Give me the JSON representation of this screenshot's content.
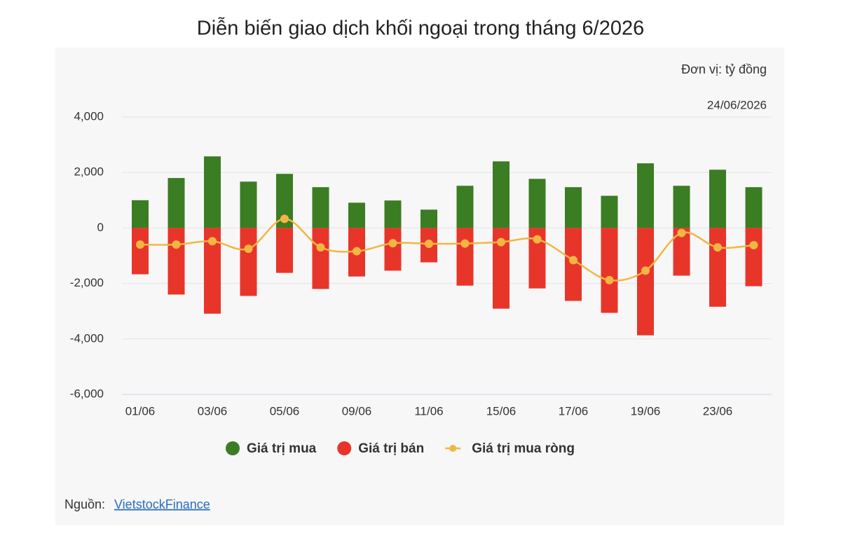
{
  "chart_data": {
    "type": "bar",
    "title": "Diễn biến giao dịch khối ngoại trong tháng 6/2026",
    "unit_note": "Đơn vị: tỷ đồng",
    "date_note": "24/06/2026",
    "categories": [
      "01/06",
      null,
      "03/06",
      null,
      "05/06",
      null,
      "09/06",
      null,
      "11/06",
      null,
      "15/06",
      null,
      "17/06",
      null,
      "19/06",
      null,
      "23/06",
      null
    ],
    "series": [
      {
        "name": "Giá trị mua",
        "type": "bar",
        "color": "#3a7d23",
        "values": [
          1000,
          1800,
          2580,
          1670,
          1950,
          1470,
          910,
          990,
          660,
          1520,
          2400,
          1770,
          1470,
          1160,
          2330,
          1520,
          2100,
          1470
        ]
      },
      {
        "name": "Giá trị bán",
        "type": "bar",
        "color": "#e8352a",
        "values": [
          -1670,
          -2400,
          -3090,
          -2450,
          -1620,
          -2200,
          -1750,
          -1540,
          -1240,
          -2080,
          -2910,
          -2180,
          -2630,
          -3060,
          -3870,
          -1720,
          -2840,
          -2100
        ]
      },
      {
        "name": "Giá trị mua ròng",
        "type": "line",
        "color": "#f2b642",
        "values": [
          -600,
          -600,
          -480,
          -750,
          330,
          -700,
          -840,
          -550,
          -570,
          -560,
          -510,
          -410,
          -1160,
          -1880,
          -1540,
          -180,
          -700,
          -620
        ]
      }
    ],
    "ylim": [
      -6000,
      4000
    ],
    "yticks": [
      {
        "value": -6000,
        "label": "-6,000"
      },
      {
        "value": -4000,
        "label": "-4,000"
      },
      {
        "value": -2000,
        "label": "-2,000"
      },
      0,
      {
        "value": 2000,
        "label": "2,000"
      },
      {
        "value": 4000,
        "label": "4,000"
      }
    ],
    "grid": true
  },
  "source": {
    "label": "Nguồn:",
    "link": "VietstockFinance"
  }
}
